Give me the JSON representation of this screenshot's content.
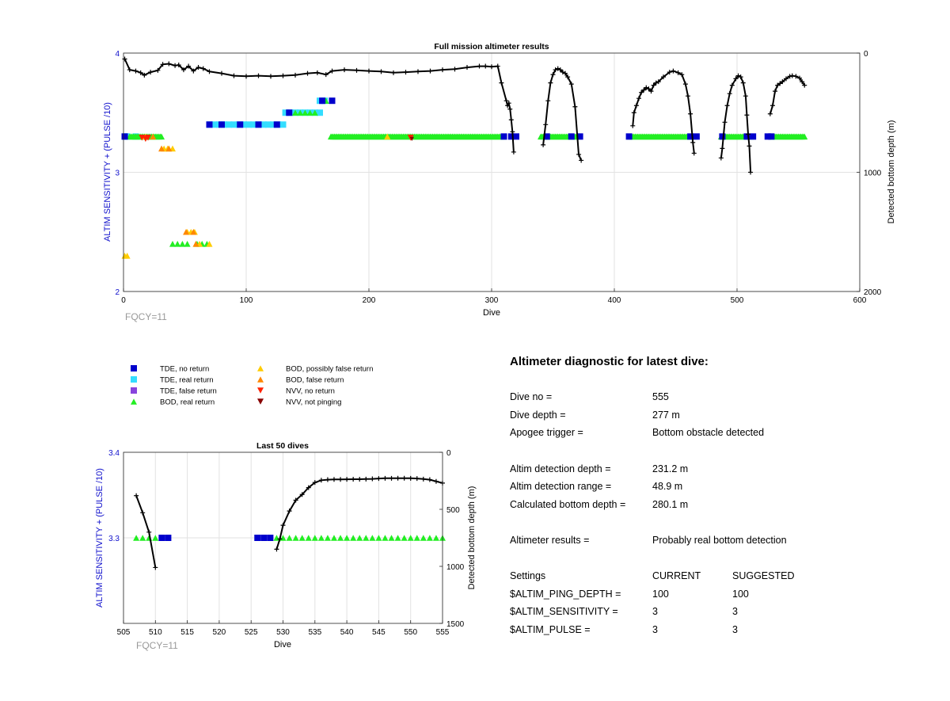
{
  "chart_data": [
    {
      "type": "scatter",
      "title": "Full mission altimeter results",
      "xlabel": "Dive",
      "ylabel_left": "ALTIM SENSITIVITY + (PULSE /10)",
      "ylabel_right": "Detected bottom depth (m)",
      "xlim": [
        0,
        600
      ],
      "ylim_left": [
        2,
        4
      ],
      "ylim_right": [
        0,
        2000
      ],
      "right_axis_reversed": true,
      "xticks": [
        "0",
        "100",
        "200",
        "300",
        "400",
        "500",
        "600"
      ],
      "yticks_left": [
        "2",
        "3",
        "4"
      ],
      "yticks_right": [
        "0",
        "1000",
        "2000"
      ],
      "grid": true,
      "footnote": "FQCY=11",
      "tde_no_return": [
        [
          1,
          3.3
        ],
        [
          70,
          3.4
        ],
        [
          80,
          3.4
        ],
        [
          95,
          3.4
        ],
        [
          110,
          3.4
        ],
        [
          125,
          3.4
        ],
        [
          135,
          3.5
        ],
        [
          162,
          3.6
        ],
        [
          170,
          3.6
        ],
        [
          310,
          3.3
        ],
        [
          316,
          3.3
        ],
        [
          320,
          3.3
        ],
        [
          345,
          3.3
        ],
        [
          365,
          3.3
        ],
        [
          372,
          3.3
        ],
        [
          412,
          3.3
        ],
        [
          462,
          3.3
        ],
        [
          467,
          3.3
        ],
        [
          488,
          3.3
        ],
        [
          508,
          3.3
        ],
        [
          513,
          3.3
        ],
        [
          525,
          3.3
        ],
        [
          528,
          3.3
        ]
      ],
      "tde_real_return": [
        [
          1,
          3.3
        ],
        [
          3,
          3.3
        ],
        [
          10,
          3.3
        ],
        [
          70,
          3.4
        ],
        [
          74,
          3.4
        ],
        [
          78,
          3.4
        ],
        [
          82,
          3.4
        ],
        [
          86,
          3.4
        ],
        [
          90,
          3.4
        ],
        [
          94,
          3.4
        ],
        [
          98,
          3.4
        ],
        [
          102,
          3.4
        ],
        [
          106,
          3.4
        ],
        [
          110,
          3.4
        ],
        [
          114,
          3.4
        ],
        [
          118,
          3.4
        ],
        [
          122,
          3.4
        ],
        [
          126,
          3.4
        ],
        [
          130,
          3.4
        ],
        [
          132,
          3.5
        ],
        [
          136,
          3.5
        ],
        [
          140,
          3.5
        ],
        [
          144,
          3.5
        ],
        [
          148,
          3.5
        ],
        [
          152,
          3.5
        ],
        [
          156,
          3.5
        ],
        [
          160,
          3.5
        ],
        [
          160,
          3.6
        ],
        [
          164,
          3.6
        ]
      ],
      "bod_real_return": {
        "y3_3_ranges": [
          [
            5,
            31
          ],
          [
            169,
            310
          ],
          [
            340,
            370
          ],
          [
            413,
            465
          ],
          [
            487,
            512
          ],
          [
            528,
            555
          ]
        ],
        "points": [
          [
            140,
            3.5
          ],
          [
            144,
            3.5
          ],
          [
            148,
            3.5
          ],
          [
            152,
            3.5
          ],
          [
            156,
            3.5
          ],
          [
            165,
            3.6
          ],
          [
            40,
            2.4
          ],
          [
            44,
            2.4
          ],
          [
            48,
            2.4
          ],
          [
            52,
            2.4
          ],
          [
            60,
            2.4
          ],
          [
            64,
            2.4
          ],
          [
            68,
            2.4
          ]
        ]
      },
      "bod_possibly_false": [
        [
          1,
          2.3
        ],
        [
          3,
          2.3
        ],
        [
          33,
          3.2
        ],
        [
          36,
          3.2
        ],
        [
          40,
          3.2
        ],
        [
          52,
          2.5
        ],
        [
          55,
          2.5
        ],
        [
          58,
          2.5
        ],
        [
          62,
          2.4
        ],
        [
          70,
          2.4
        ],
        [
          18,
          3.3
        ],
        [
          215,
          3.3
        ]
      ],
      "bod_false_return": [
        [
          31,
          3.2
        ],
        [
          37,
          3.2
        ],
        [
          51,
          2.5
        ],
        [
          57,
          2.5
        ],
        [
          59,
          2.4
        ],
        [
          24,
          3.3
        ]
      ],
      "nvv_no_return": [
        [
          15,
          3.29
        ],
        [
          18,
          3.28
        ],
        [
          20,
          3.29
        ],
        [
          234,
          3.29
        ]
      ],
      "nvv_not_pinging": [
        [
          235,
          3.28
        ]
      ],
      "bottom_depth_segments": [
        [
          [
            1,
            50
          ],
          [
            5,
            140
          ],
          [
            10,
            150
          ],
          [
            14,
            165
          ],
          [
            17,
            185
          ],
          [
            22,
            160
          ],
          [
            28,
            145
          ],
          [
            32,
            95
          ],
          [
            37,
            90
          ],
          [
            42,
            105
          ],
          [
            45,
            100
          ],
          [
            49,
            140
          ],
          [
            53,
            110
          ],
          [
            57,
            150
          ],
          [
            61,
            120
          ],
          [
            65,
            130
          ],
          [
            70,
            155
          ],
          [
            80,
            170
          ],
          [
            90,
            190
          ],
          [
            100,
            195
          ],
          [
            110,
            190
          ],
          [
            120,
            195
          ],
          [
            130,
            190
          ],
          [
            140,
            185
          ],
          [
            150,
            170
          ],
          [
            158,
            165
          ],
          [
            165,
            180
          ],
          [
            170,
            150
          ],
          [
            180,
            140
          ],
          [
            190,
            145
          ],
          [
            200,
            150
          ],
          [
            210,
            155
          ],
          [
            220,
            165
          ],
          [
            230,
            160
          ],
          [
            240,
            155
          ],
          [
            250,
            150
          ],
          [
            260,
            140
          ],
          [
            270,
            135
          ],
          [
            280,
            120
          ],
          [
            290,
            110
          ],
          [
            295,
            110
          ],
          [
            300,
            115
          ],
          [
            305,
            110
          ],
          [
            308,
            250
          ],
          [
            312,
            400
          ],
          [
            313,
            440
          ],
          [
            314,
            420
          ],
          [
            315,
            470
          ],
          [
            316,
            560
          ],
          [
            317,
            660
          ],
          [
            318,
            830
          ]
        ],
        [
          [
            342,
            770
          ],
          [
            344,
            600
          ],
          [
            346,
            400
          ],
          [
            348,
            250
          ],
          [
            350,
            180
          ],
          [
            352,
            140
          ],
          [
            354,
            130
          ],
          [
            356,
            140
          ],
          [
            358,
            160
          ],
          [
            360,
            170
          ],
          [
            362,
            200
          ],
          [
            365,
            260
          ],
          [
            368,
            450
          ],
          [
            371,
            850
          ],
          [
            373,
            900
          ]
        ],
        [
          [
            415,
            610
          ],
          [
            416,
            500
          ],
          [
            418,
            440
          ],
          [
            420,
            380
          ],
          [
            422,
            330
          ],
          [
            424,
            310
          ],
          [
            426,
            290
          ],
          [
            428,
            300
          ],
          [
            430,
            320
          ],
          [
            432,
            270
          ],
          [
            434,
            250
          ],
          [
            436,
            240
          ],
          [
            440,
            200
          ],
          [
            445,
            160
          ],
          [
            448,
            150
          ],
          [
            452,
            165
          ],
          [
            455,
            180
          ],
          [
            458,
            260
          ],
          [
            460,
            360
          ],
          [
            462,
            510
          ],
          [
            464,
            750
          ],
          [
            465,
            840
          ]
        ],
        [
          [
            487,
            880
          ],
          [
            488,
            800
          ],
          [
            490,
            580
          ],
          [
            492,
            440
          ],
          [
            494,
            340
          ],
          [
            496,
            270
          ],
          [
            499,
            215
          ],
          [
            501,
            190
          ],
          [
            503,
            200
          ],
          [
            505,
            250
          ],
          [
            507,
            360
          ],
          [
            508,
            520
          ],
          [
            509,
            680
          ],
          [
            510,
            780
          ],
          [
            511,
            1000
          ]
        ],
        [
          [
            527,
            510
          ],
          [
            529,
            440
          ],
          [
            531,
            320
          ],
          [
            533,
            270
          ],
          [
            535,
            255
          ],
          [
            537,
            240
          ],
          [
            540,
            215
          ],
          [
            543,
            195
          ],
          [
            545,
            190
          ],
          [
            548,
            195
          ],
          [
            551,
            210
          ],
          [
            553,
            240
          ],
          [
            555,
            270
          ]
        ]
      ]
    },
    {
      "type": "scatter",
      "title": "Last 50 dives",
      "xlabel": "Dive",
      "ylabel_left": "ALTIM SENSITIVITY + (PULSE /10)",
      "ylabel_right": "Detected bottom depth (m)",
      "xlim": [
        505,
        555
      ],
      "ylim_left": [
        3.2,
        3.4
      ],
      "ylim_right": [
        0,
        1500
      ],
      "right_axis_reversed": true,
      "xticks": [
        "505",
        "510",
        "515",
        "520",
        "525",
        "530",
        "535",
        "540",
        "545",
        "550",
        "555"
      ],
      "yticks_left": [
        "3.3",
        "3.4"
      ],
      "yticks_right": [
        "0",
        "500",
        "1000",
        "1500"
      ],
      "grid": true,
      "footnote": "FQCY=11",
      "tde_no_return": [
        [
          511,
          3.3
        ],
        [
          512,
          3.3
        ],
        [
          526,
          3.3
        ],
        [
          527,
          3.3
        ],
        [
          528,
          3.3
        ]
      ],
      "bod_real_return": [
        [
          507,
          3.3
        ],
        [
          508,
          3.3
        ],
        [
          509,
          3.3
        ],
        [
          510,
          3.3
        ],
        [
          529,
          3.3
        ],
        [
          530,
          3.3
        ],
        [
          531,
          3.3
        ],
        [
          532,
          3.3
        ],
        [
          533,
          3.3
        ],
        [
          534,
          3.3
        ],
        [
          535,
          3.3
        ],
        [
          536,
          3.3
        ],
        [
          537,
          3.3
        ],
        [
          538,
          3.3
        ],
        [
          539,
          3.3
        ],
        [
          540,
          3.3
        ],
        [
          541,
          3.3
        ],
        [
          542,
          3.3
        ],
        [
          543,
          3.3
        ],
        [
          544,
          3.3
        ],
        [
          545,
          3.3
        ],
        [
          546,
          3.3
        ],
        [
          547,
          3.3
        ],
        [
          548,
          3.3
        ],
        [
          549,
          3.3
        ],
        [
          550,
          3.3
        ],
        [
          551,
          3.3
        ],
        [
          552,
          3.3
        ],
        [
          553,
          3.3
        ],
        [
          554,
          3.3
        ],
        [
          555,
          3.3
        ]
      ],
      "bottom_depth_segments": [
        [
          [
            507,
            380
          ],
          [
            508,
            530
          ],
          [
            509,
            700
          ],
          [
            510,
            1010
          ]
        ],
        [
          [
            529,
            850
          ],
          [
            529.5,
            760
          ],
          [
            530,
            640
          ],
          [
            531,
            515
          ],
          [
            532,
            420
          ],
          [
            533,
            370
          ],
          [
            534,
            310
          ],
          [
            535,
            265
          ],
          [
            536,
            245
          ],
          [
            537,
            240
          ],
          [
            538,
            238
          ],
          [
            539,
            238
          ],
          [
            540,
            237
          ],
          [
            541,
            236
          ],
          [
            542,
            236
          ],
          [
            543,
            235
          ],
          [
            544,
            233
          ],
          [
            545,
            230
          ],
          [
            546,
            228
          ],
          [
            547,
            228
          ],
          [
            548,
            227
          ],
          [
            549,
            227
          ],
          [
            550,
            228
          ],
          [
            551,
            230
          ],
          [
            552,
            235
          ],
          [
            553,
            240
          ],
          [
            554,
            255
          ],
          [
            555,
            270
          ]
        ]
      ]
    }
  ],
  "legend": {
    "entries": [
      {
        "label": "TDE, no return",
        "color": "#0000cc",
        "marker": "square"
      },
      {
        "label": "TDE, real return",
        "color": "#33ddff",
        "marker": "square"
      },
      {
        "label": "TDE, false return",
        "color": "#8844dd",
        "marker": "square"
      },
      {
        "label": "BOD, real return",
        "color": "#22ee22",
        "marker": "triangle-up"
      },
      {
        "label": "BOD, possibly false return",
        "color": "#ffcc00",
        "marker": "triangle-up"
      },
      {
        "label": "BOD, false return",
        "color": "#ff8800",
        "marker": "triangle-up"
      },
      {
        "label": "NVV, no return",
        "color": "#ff2200",
        "marker": "triangle-down"
      },
      {
        "label": "NVV, not pinging",
        "color": "#880000",
        "marker": "triangle-down"
      }
    ]
  },
  "diagnostic": {
    "title": "Altimeter diagnostic for latest dive:",
    "dive_no_label": "Dive no =",
    "dive_no_value": "555",
    "dive_depth_label": "Dive depth =",
    "dive_depth_value": "277 m",
    "apogee_label": "Apogee trigger =",
    "apogee_value": "Bottom obstacle detected",
    "altim_det_depth_label": "Altim detection depth =",
    "altim_det_depth_value": "231.2 m",
    "altim_det_range_label": "Altim detection range =",
    "altim_det_range_value": "48.9 m",
    "calc_bottom_label": "Calculated bottom depth =",
    "calc_bottom_value": "280.1 m",
    "results_label": "Altimeter results =",
    "results_value": "Probably real bottom detection",
    "settings_label": "Settings",
    "current_label": "CURRENT",
    "suggested_label": "SUGGESTED",
    "settings": [
      {
        "name": "$ALTIM_PING_DEPTH =",
        "current": "100",
        "suggested": "100"
      },
      {
        "name": "$ALTIM_SENSITIVITY =",
        "current": "3",
        "suggested": "3"
      },
      {
        "name": "$ALTIM_PULSE =",
        "current": "3",
        "suggested": "3"
      }
    ]
  },
  "colors": {
    "left_axis": "#1010cc",
    "grid": "#e2e2e2",
    "footnote": "#999999",
    "depth_line": "#000000"
  }
}
